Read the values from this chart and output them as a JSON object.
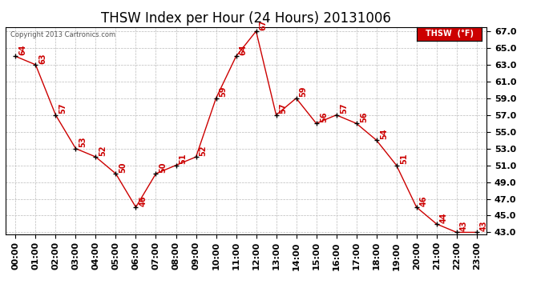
{
  "title": "THSW Index per Hour (24 Hours) 20131006",
  "copyright": "Copyright 2013 Cartronics.com",
  "legend_label": "THSW  (°F)",
  "hours": [
    "00:00",
    "01:00",
    "02:00",
    "03:00",
    "04:00",
    "05:00",
    "06:00",
    "07:00",
    "08:00",
    "09:00",
    "10:00",
    "11:00",
    "12:00",
    "13:00",
    "14:00",
    "15:00",
    "16:00",
    "17:00",
    "18:00",
    "19:00",
    "20:00",
    "21:00",
    "22:00",
    "23:00"
  ],
  "values": [
    64,
    63,
    57,
    53,
    52,
    50,
    46,
    50,
    51,
    52,
    59,
    64,
    67,
    57,
    59,
    56,
    57,
    56,
    54,
    51,
    46,
    44,
    43,
    43
  ],
  "line_color": "#cc0000",
  "marker_color": "#000000",
  "label_color": "#cc0000",
  "bg_color": "#ffffff",
  "grid_color": "#bbbbbb",
  "ylim_min": 43.0,
  "ylim_max": 67.0,
  "ytick_step": 2.0,
  "title_fontsize": 12,
  "tick_fontsize": 8,
  "annotation_fontsize": 7,
  "legend_bg": "#cc0000",
  "legend_text_color": "#ffffff",
  "copyright_color": "#555555"
}
